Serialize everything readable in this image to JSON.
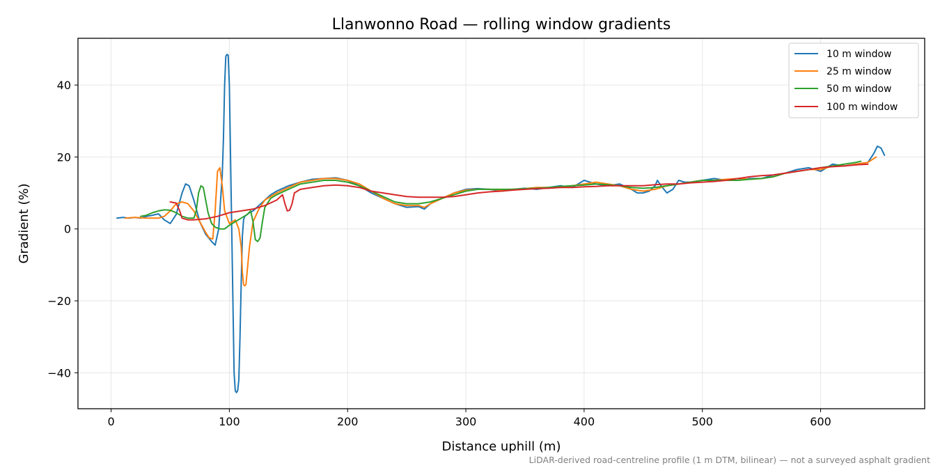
{
  "chart_data": {
    "type": "line",
    "title": "Llanwonno Road — rolling window gradients",
    "xlabel": "Distance uphill (m)",
    "ylabel": "Gradient (%)",
    "footnote": "LiDAR-derived road-centreline profile (1 m DTM, bilinear) — not a surveyed asphalt gradient",
    "xlim": [
      -28,
      688
    ],
    "ylim": [
      -50,
      53
    ],
    "x_ticks": [
      0,
      100,
      200,
      300,
      400,
      500,
      600
    ],
    "x_tick_labels": [
      "0",
      "100",
      "200",
      "300",
      "400",
      "500",
      "600"
    ],
    "y_ticks": [
      -40,
      -20,
      0,
      20,
      40
    ],
    "y_tick_labels": [
      "−40",
      "−20",
      "0",
      "20",
      "40"
    ],
    "grid": true,
    "legend_position": "top-right",
    "series": [
      {
        "name": "10 m window",
        "color": "#1f77b4",
        "x": [
          5,
          10,
          15,
          20,
          25,
          30,
          35,
          40,
          45,
          50,
          55,
          60,
          63,
          66,
          70,
          75,
          80,
          85,
          88,
          91,
          94,
          95,
          96,
          97,
          98,
          99,
          100,
          101,
          102,
          103,
          104,
          105,
          106,
          107,
          108,
          109,
          110,
          111,
          112,
          113,
          115,
          117,
          120,
          125,
          130,
          135,
          140,
          150,
          160,
          170,
          180,
          190,
          200,
          210,
          220,
          230,
          240,
          250,
          260,
          265,
          270,
          280,
          290,
          300,
          310,
          320,
          330,
          340,
          350,
          360,
          370,
          380,
          390,
          400,
          410,
          420,
          430,
          440,
          445,
          450,
          455,
          460,
          462,
          465,
          470,
          475,
          480,
          485,
          490,
          500,
          510,
          520,
          530,
          540,
          550,
          560,
          570,
          580,
          590,
          600,
          610,
          620,
          630,
          640,
          645,
          648,
          651,
          654
        ],
        "y": [
          3.0,
          3.2,
          3.0,
          3.2,
          3.0,
          3.5,
          3.8,
          4.2,
          2.5,
          1.5,
          4.0,
          10.0,
          12.5,
          12.0,
          8.0,
          2.0,
          -1.5,
          -3.5,
          -4.5,
          0.0,
          15.0,
          25.0,
          40.0,
          48.0,
          48.5,
          48.3,
          40.0,
          20.0,
          0.0,
          -20.0,
          -40.0,
          -45.0,
          -45.5,
          -45.0,
          -42.0,
          -30.0,
          -15.0,
          -2.0,
          2.5,
          3.5,
          4.0,
          4.5,
          5.0,
          6.5,
          8.0,
          9.5,
          10.5,
          12.0,
          13.0,
          13.8,
          14.0,
          14.2,
          13.5,
          12.0,
          10.0,
          8.5,
          7.0,
          6.0,
          6.2,
          5.5,
          7.0,
          8.5,
          10.0,
          11.0,
          11.2,
          11.0,
          10.5,
          11.0,
          11.3,
          11.0,
          11.5,
          12.0,
          11.5,
          13.5,
          12.5,
          12.0,
          12.5,
          11.0,
          10.0,
          10.0,
          10.5,
          12.0,
          13.5,
          12.0,
          10.0,
          11.0,
          13.5,
          13.0,
          13.0,
          13.5,
          14.0,
          13.5,
          13.5,
          14.0,
          14.0,
          15.0,
          15.5,
          16.5,
          17.0,
          16.0,
          18.0,
          17.5,
          18.0,
          18.5,
          21.0,
          23.0,
          22.5,
          20.5
        ]
      },
      {
        "name": "25 m window",
        "color": "#ff7f0e",
        "x": [
          12,
          20,
          30,
          40,
          45,
          50,
          55,
          60,
          65,
          70,
          75,
          80,
          83,
          86,
          88,
          90,
          92,
          94,
          96,
          100,
          105,
          108,
          110,
          111,
          112,
          113,
          114,
          115,
          117,
          120,
          125,
          130,
          140,
          150,
          160,
          170,
          180,
          190,
          200,
          210,
          220,
          230,
          240,
          250,
          260,
          265,
          270,
          280,
          290,
          300,
          310,
          320,
          330,
          340,
          350,
          360,
          370,
          380,
          390,
          400,
          410,
          420,
          430,
          440,
          450,
          460,
          470,
          480,
          490,
          500,
          510,
          520,
          530,
          540,
          550,
          560,
          570,
          580,
          590,
          600,
          610,
          620,
          630,
          640,
          647
        ],
        "y": [
          3.0,
          3.2,
          3.0,
          3.0,
          3.5,
          5.0,
          7.0,
          7.5,
          7.0,
          5.0,
          2.0,
          -1.0,
          -2.5,
          -2.8,
          5.0,
          16.0,
          17.0,
          12.0,
          5.0,
          1.5,
          2.5,
          0.0,
          -5.0,
          -12.0,
          -15.5,
          -15.8,
          -15.5,
          -12.0,
          -5.0,
          2.0,
          5.5,
          8.0,
          10.0,
          11.5,
          13.0,
          13.5,
          14.0,
          14.0,
          13.5,
          12.5,
          10.5,
          8.5,
          7.0,
          6.5,
          6.5,
          6.0,
          7.0,
          8.5,
          10.0,
          10.8,
          11.0,
          11.0,
          10.8,
          11.0,
          11.2,
          11.5,
          11.5,
          11.5,
          12.0,
          12.5,
          13.0,
          12.5,
          12.0,
          11.0,
          10.5,
          11.0,
          12.0,
          12.5,
          13.0,
          13.5,
          13.5,
          13.8,
          14.0,
          13.8,
          14.0,
          14.5,
          15.5,
          16.0,
          16.5,
          16.5,
          17.5,
          17.5,
          18.0,
          18.5,
          20.0
        ]
      },
      {
        "name": "50 m window",
        "color": "#2ca02c",
        "x": [
          25,
          30,
          35,
          40,
          45,
          50,
          55,
          60,
          65,
          70,
          72,
          74,
          76,
          78,
          80,
          82,
          85,
          88,
          92,
          96,
          100,
          105,
          110,
          115,
          118,
          120,
          122,
          124,
          126,
          128,
          130,
          135,
          140,
          150,
          160,
          170,
          180,
          190,
          200,
          210,
          220,
          230,
          240,
          250,
          260,
          270,
          280,
          290,
          300,
          310,
          320,
          330,
          340,
          350,
          360,
          370,
          380,
          390,
          400,
          410,
          420,
          430,
          440,
          450,
          460,
          470,
          480,
          490,
          500,
          510,
          520,
          530,
          540,
          550,
          560,
          570,
          580,
          590,
          600,
          610,
          620,
          630,
          634
        ],
        "y": [
          3.5,
          3.8,
          4.5,
          5.0,
          5.3,
          5.2,
          4.5,
          3.5,
          3.0,
          3.0,
          5.0,
          10.0,
          12.0,
          11.5,
          8.0,
          4.5,
          1.5,
          0.5,
          0.0,
          0.0,
          1.0,
          2.0,
          3.0,
          4.0,
          5.0,
          2.0,
          -3.0,
          -3.5,
          -2.5,
          2.0,
          6.0,
          8.5,
          9.5,
          11.0,
          12.5,
          13.0,
          13.5,
          13.5,
          13.0,
          12.0,
          10.5,
          9.0,
          7.5,
          7.0,
          7.0,
          7.5,
          8.5,
          9.5,
          10.5,
          11.0,
          11.0,
          11.0,
          11.0,
          11.2,
          11.3,
          11.5,
          11.8,
          12.0,
          12.2,
          12.5,
          12.3,
          12.0,
          11.5,
          11.3,
          11.5,
          12.0,
          12.5,
          13.0,
          13.5,
          13.5,
          13.5,
          13.5,
          13.8,
          14.0,
          14.5,
          15.5,
          16.0,
          16.5,
          17.0,
          17.5,
          18.0,
          18.5,
          18.8
        ]
      },
      {
        "name": "100 m window",
        "color": "#d62728",
        "x": [
          50,
          55,
          58,
          60,
          65,
          70,
          80,
          90,
          100,
          110,
          120,
          130,
          140,
          145,
          147,
          149,
          151,
          153,
          155,
          160,
          170,
          180,
          190,
          200,
          210,
          220,
          230,
          240,
          250,
          260,
          270,
          280,
          290,
          300,
          310,
          320,
          330,
          340,
          350,
          360,
          370,
          380,
          390,
          400,
          410,
          420,
          430,
          440,
          450,
          460,
          470,
          480,
          490,
          500,
          510,
          520,
          530,
          540,
          550,
          560,
          570,
          580,
          590,
          600,
          610,
          620,
          630,
          640
        ],
        "y": [
          7.5,
          7.2,
          5.0,
          3.0,
          2.5,
          2.5,
          2.8,
          3.5,
          4.5,
          5.0,
          5.5,
          6.5,
          8.0,
          9.5,
          7.0,
          5.0,
          5.2,
          7.0,
          10.0,
          11.0,
          11.5,
          12.0,
          12.2,
          12.0,
          11.5,
          10.5,
          10.0,
          9.5,
          9.0,
          8.8,
          8.8,
          8.8,
          9.0,
          9.5,
          10.0,
          10.3,
          10.5,
          10.8,
          11.0,
          11.2,
          11.3,
          11.5,
          11.5,
          11.7,
          11.8,
          12.0,
          12.0,
          12.0,
          12.0,
          12.3,
          12.5,
          12.5,
          12.8,
          13.0,
          13.2,
          13.5,
          14.0,
          14.5,
          14.8,
          15.0,
          15.5,
          16.0,
          16.5,
          17.0,
          17.3,
          17.5,
          17.8,
          18.0
        ]
      }
    ]
  }
}
